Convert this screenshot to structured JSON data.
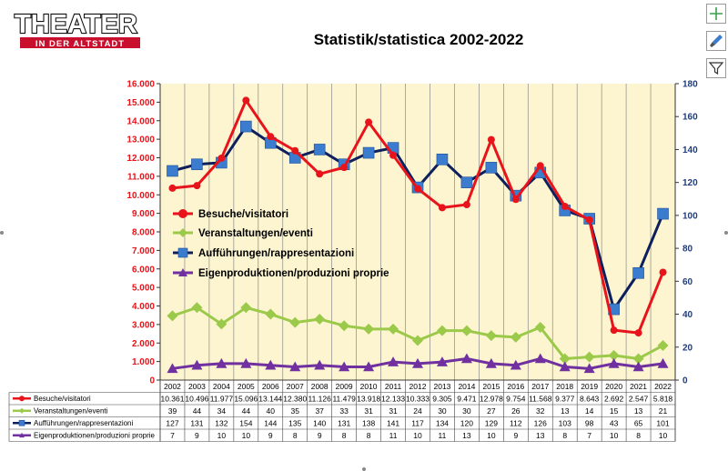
{
  "header": {
    "logo_text_main": "THEATER",
    "logo_text_sub": "IN DER ALTSTADT",
    "title": "Statistik/statistica 2002-2022"
  },
  "toolbar": {
    "icons": [
      "plus-icon",
      "brush-icon",
      "filter-icon"
    ]
  },
  "chart_data": {
    "type": "line",
    "title": "Statistik/statistica 2002-2022",
    "categories": [
      "2002",
      "2003",
      "2004",
      "2005",
      "2006",
      "2007",
      "2008",
      "2009",
      "2010",
      "2011",
      "2012",
      "2013",
      "2014",
      "2015",
      "2016",
      "2017",
      "2018",
      "2019",
      "2020",
      "2021",
      "2022"
    ],
    "y_left": {
      "min": 0,
      "max": 16000,
      "step": 1000
    },
    "y_right": {
      "min": 0,
      "max": 180,
      "step": 20
    },
    "y_left_ticks": [
      "0",
      "1.000",
      "2.000",
      "3.000",
      "4.000",
      "5.000",
      "6.000",
      "7.000",
      "8.000",
      "9.000",
      "10.000",
      "11.000",
      "12.000",
      "13.000",
      "14.000",
      "15.000",
      "16.000"
    ],
    "y_right_ticks": [
      "0",
      "20",
      "40",
      "60",
      "80",
      "100",
      "120",
      "140",
      "160",
      "180"
    ],
    "grid": "vertical",
    "legend_position": "inside-left",
    "series": [
      {
        "name": "Besuche/visitatori",
        "axis": "left",
        "color": "#e8141b",
        "marker": "circle",
        "values": [
          10361,
          10496,
          11977,
          15096,
          13144,
          12380,
          11126,
          11479,
          13918,
          12133,
          10333,
          9305,
          9471,
          12978,
          9754,
          11568,
          9377,
          8643,
          2692,
          2547,
          5818
        ],
        "labels": [
          "10.361",
          "10.496",
          "11.977",
          "15.096",
          "13.144",
          "12.380",
          "11.126",
          "11.479",
          "13.918",
          "12.133",
          "10.333",
          "9.305",
          "9.471",
          "12.978",
          "9.754",
          "11.568",
          "9.377",
          "8.643",
          "2.692",
          "2.547",
          "5.818"
        ]
      },
      {
        "name": "Veranstaltungen/eventi",
        "axis": "right",
        "color": "#9bc94a",
        "marker": "diamond",
        "values": [
          39,
          44,
          34,
          44,
          40,
          35,
          37,
          33,
          31,
          31,
          24,
          30,
          30,
          27,
          26,
          32,
          13,
          14,
          15,
          13,
          21
        ],
        "labels": [
          "39",
          "44",
          "34",
          "44",
          "40",
          "35",
          "37",
          "33",
          "31",
          "31",
          "24",
          "30",
          "30",
          "27",
          "26",
          "32",
          "13",
          "14",
          "15",
          "13",
          "21"
        ]
      },
      {
        "name": "Aufführungen/rappresentazioni",
        "axis": "right",
        "color": "#0d1f5c",
        "marker_color": "#3b7ccf",
        "marker": "square",
        "values": [
          127,
          131,
          132,
          154,
          144,
          135,
          140,
          131,
          138,
          141,
          117,
          134,
          120,
          129,
          112,
          126,
          103,
          98,
          43,
          65,
          101
        ],
        "labels": [
          "127",
          "131",
          "132",
          "154",
          "144",
          "135",
          "140",
          "131",
          "138",
          "141",
          "117",
          "134",
          "120",
          "129",
          "112",
          "126",
          "103",
          "98",
          "43",
          "65",
          "101"
        ]
      },
      {
        "name": "Eigenproduktionen/produzioni proprie",
        "axis": "right",
        "color": "#7030a0",
        "marker": "triangle",
        "values": [
          7,
          9,
          10,
          10,
          9,
          8,
          9,
          8,
          8,
          11,
          10,
          11,
          13,
          10,
          9,
          13,
          8,
          7,
          10,
          8,
          10
        ],
        "labels": [
          "7",
          "9",
          "10",
          "10",
          "9",
          "8",
          "9",
          "8",
          "8",
          "11",
          "10",
          "11",
          "13",
          "10",
          "9",
          "13",
          "8",
          "7",
          "10",
          "8",
          "10"
        ]
      }
    ]
  }
}
